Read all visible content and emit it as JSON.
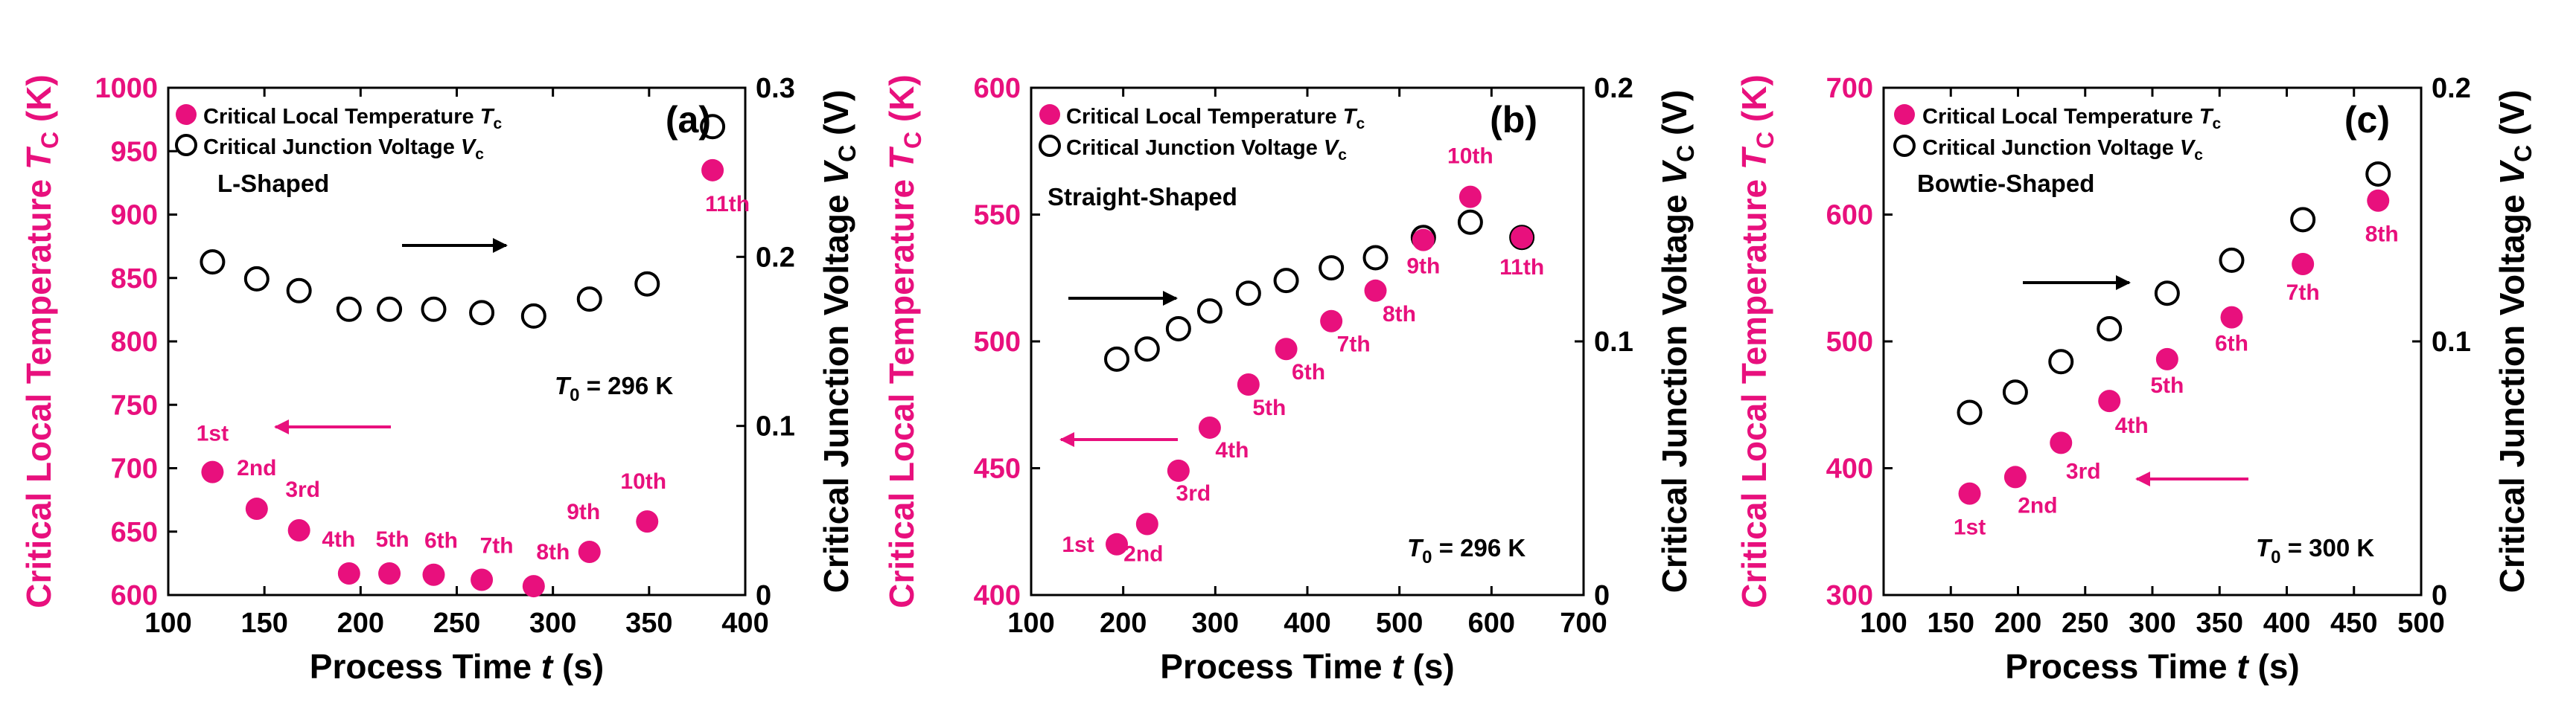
{
  "colors": {
    "magenta": "#e8107d",
    "black": "#000000"
  },
  "chart_data": [
    {
      "type": "scatter",
      "panel_label": "(a)",
      "shape_label": "L-Shaped",
      "t0_symbol": "T",
      "t0_sub": "0",
      "t0_value": " = 296 K",
      "xlabel": "Process Time ",
      "xlabel_italic": "t",
      "xlabel_unit": " (s)",
      "ylabel_left": "Critical Local Temperature ",
      "ylabel_left_italic": "T",
      "ylabel_left_sub": "C",
      "ylabel_left_unit": " (K)",
      "ylabel_right": "Critical Junction Voltage ",
      "ylabel_right_italic": "V",
      "ylabel_right_sub": "C",
      "ylabel_right_unit": " (V)",
      "legend": [
        {
          "text": "Critical Local Temperature ",
          "sym": "T",
          "sub": "c"
        },
        {
          "text": "Critical Junction Voltage ",
          "sym": "V",
          "sub": "c"
        }
      ],
      "xlim": [
        100,
        400
      ],
      "xticks": [
        100,
        150,
        200,
        250,
        300,
        350,
        400
      ],
      "ylim_left": [
        600,
        1000
      ],
      "yticks_left": [
        600,
        650,
        700,
        750,
        800,
        850,
        900,
        950,
        1000
      ],
      "ylim_right": [
        0,
        0.3
      ],
      "yticks_right": [
        0,
        0.1,
        0.2,
        0.3
      ],
      "ytick_right_labels": [
        "0",
        "0.1",
        "0.2",
        "0.3"
      ],
      "temperature": {
        "x": [
          123,
          146,
          168,
          194,
          215,
          238,
          263,
          290,
          319,
          349,
          383
        ],
        "y": [
          697,
          668,
          651,
          617,
          617,
          616,
          612,
          607,
          634,
          658,
          935
        ]
      },
      "voltage": {
        "x": [
          123,
          146,
          168,
          194,
          215,
          238,
          263,
          290,
          319,
          349,
          383
        ],
        "y": [
          0.197,
          0.187,
          0.18,
          0.169,
          0.169,
          0.169,
          0.167,
          0.165,
          0.175,
          0.184,
          0.277
        ]
      },
      "point_labels": [
        "1st",
        "2nd",
        "3rd",
        "4th",
        "5th",
        "6th",
        "7th",
        "8th",
        "9th",
        "10th",
        "11th"
      ]
    },
    {
      "type": "scatter",
      "panel_label": "(b)",
      "shape_label": "Straight-Shaped",
      "t0_symbol": "T",
      "t0_sub": "0",
      "t0_value": " = 296 K",
      "xlabel": "Process Time ",
      "xlabel_italic": "t",
      "xlabel_unit": " (s)",
      "ylabel_left": "Critical Local Temperature ",
      "ylabel_left_italic": "T",
      "ylabel_left_sub": "C",
      "ylabel_left_unit": " (K)",
      "ylabel_right": "Critical Junction Voltage ",
      "ylabel_right_italic": "V",
      "ylabel_right_sub": "C",
      "ylabel_right_unit": " (V)",
      "legend": [
        {
          "text": "Critical Local Temperature ",
          "sym": "T",
          "sub": "c"
        },
        {
          "text": "Critical Junction Voltage ",
          "sym": "V",
          "sub": "c"
        }
      ],
      "xlim": [
        100,
        700
      ],
      "xticks": [
        100,
        200,
        300,
        400,
        500,
        600,
        700
      ],
      "ylim_left": [
        400,
        600
      ],
      "yticks_left": [
        400,
        450,
        500,
        550,
        600
      ],
      "ylim_right": [
        0,
        0.2
      ],
      "yticks_right": [
        0,
        0.1,
        0.2
      ],
      "ytick_right_labels": [
        "0",
        "0.1",
        "0.2"
      ],
      "temperature": {
        "x": [
          193,
          226,
          260,
          294,
          336,
          377,
          426,
          474,
          526,
          577,
          633
        ],
        "y": [
          420,
          428,
          449,
          466,
          483,
          497,
          508,
          520,
          540,
          557,
          541
        ]
      },
      "voltage": {
        "x": [
          193,
          226,
          260,
          294,
          336,
          377,
          426,
          474,
          526,
          577,
          633
        ],
        "y": [
          0.093,
          0.097,
          0.105,
          0.112,
          0.119,
          0.124,
          0.129,
          0.133,
          0.141,
          0.147,
          0.141
        ]
      },
      "point_labels": [
        "1st",
        "2nd",
        "3rd",
        "4th",
        "5th",
        "6th",
        "7th",
        "8th",
        "9th",
        "10th",
        "11th"
      ]
    },
    {
      "type": "scatter",
      "panel_label": "(c)",
      "shape_label": "Bowtie-Shaped",
      "t0_symbol": "T",
      "t0_sub": "0",
      "t0_value": " = 300 K",
      "xlabel": "Process Time ",
      "xlabel_italic": "t",
      "xlabel_unit": " (s)",
      "ylabel_left": "Critical Local Temperature ",
      "ylabel_left_italic": "T",
      "ylabel_left_sub": "C",
      "ylabel_left_unit": " (K)",
      "ylabel_right": "Critical Junction Voltage ",
      "ylabel_right_italic": "V",
      "ylabel_right_sub": "C",
      "ylabel_right_unit": " (V)",
      "legend": [
        {
          "text": "Critical Local Temperature ",
          "sym": "T",
          "sub": "c"
        },
        {
          "text": "Critical Junction Voltage ",
          "sym": "V",
          "sub": "c"
        }
      ],
      "xlim": [
        100,
        500
      ],
      "xticks": [
        100,
        150,
        200,
        250,
        300,
        350,
        400,
        450,
        500
      ],
      "ylim_left": [
        300,
        700
      ],
      "yticks_left": [
        300,
        400,
        500,
        600,
        700
      ],
      "ylim_right": [
        0,
        0.2
      ],
      "yticks_right": [
        0,
        0.1,
        0.2
      ],
      "ytick_right_labels": [
        "0",
        "0.1",
        "0.2"
      ],
      "temperature": {
        "x": [
          164,
          198,
          232,
          268,
          311,
          359,
          412,
          468
        ],
        "y": [
          380,
          393,
          420,
          453,
          486,
          519,
          561,
          611
        ]
      },
      "voltage": {
        "x": [
          164,
          198,
          232,
          268,
          311,
          359,
          412,
          468
        ],
        "y": [
          0.072,
          0.08,
          0.092,
          0.105,
          0.119,
          0.132,
          0.148,
          0.166
        ]
      },
      "point_labels": [
        "1st",
        "2nd",
        "3rd",
        "4th",
        "5th",
        "6th",
        "7th",
        "8th"
      ]
    }
  ]
}
